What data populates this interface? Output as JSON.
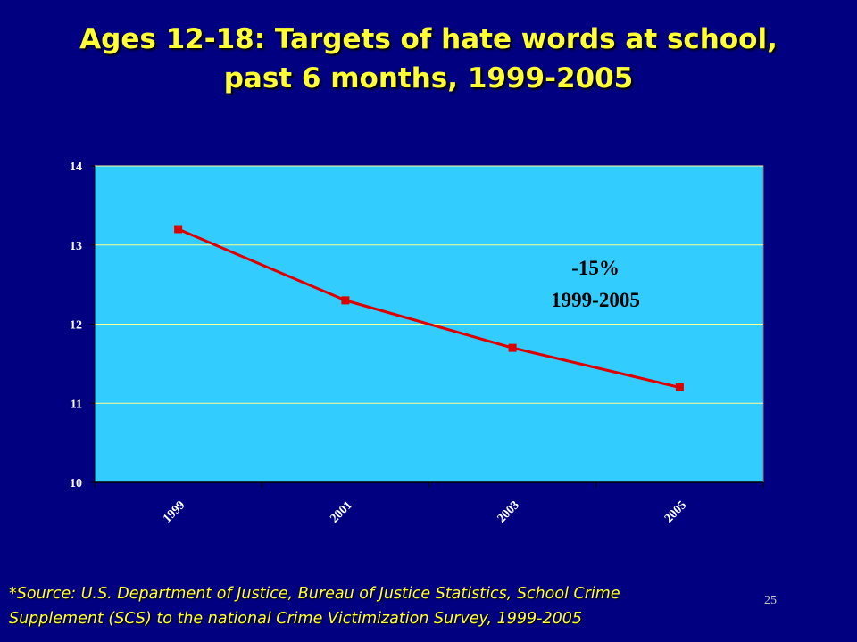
{
  "slide": {
    "title_lines": [
      "Ages 12-18:  Targets of hate words at school,",
      "past 6 months, 1999-2005"
    ],
    "source_lines": [
      "*Source: U.S. Department of Justice, Bureau of Justice Statistics, School Crime",
      "Supplement (SCS) to the national Crime Victimization Survey, 1999-2005"
    ],
    "page_number": "25"
  },
  "colors": {
    "background": "#000080",
    "plot_area": "#33CCFF",
    "gridline": "#FFFF99",
    "series_line": "#DD0000",
    "title_text": "#FFFF33"
  },
  "chart_data": {
    "type": "line",
    "title": "",
    "xlabel": "",
    "ylabel": "",
    "categories": [
      "1999",
      "2001",
      "2003",
      "2005"
    ],
    "series": [
      {
        "values": [
          13.2,
          12.3,
          11.7,
          11.2
        ]
      }
    ],
    "ylim": [
      10,
      14
    ],
    "yticks": [
      "10",
      "11",
      "12",
      "13",
      "14"
    ],
    "grid": true,
    "legend": "none",
    "annotation_lines": [
      "-15%",
      "1999-2005"
    ]
  }
}
